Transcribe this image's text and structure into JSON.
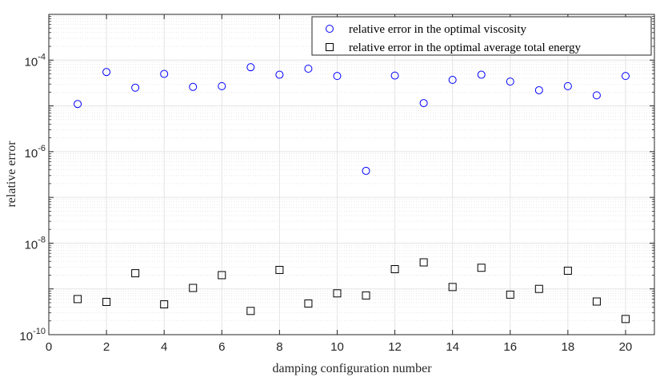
{
  "chart_data": {
    "type": "scatter",
    "xlabel": "damping configuration number",
    "ylabel": "relative error",
    "xlim": [
      0,
      21
    ],
    "ylim": [
      1e-10,
      0.001
    ],
    "yscale": "log",
    "grid": true,
    "minor_grid": true,
    "legend_position": "top-right",
    "x_ticks": [
      0,
      2,
      4,
      6,
      8,
      10,
      12,
      14,
      16,
      18,
      20
    ],
    "x_tick_labels": [
      "0",
      "2",
      "4",
      "6",
      "8",
      "10",
      "12",
      "14",
      "16",
      "18",
      "20"
    ],
    "y_ticks": [
      {
        "value": 1e-10,
        "base": "10",
        "exp": "-10"
      },
      {
        "value": 1e-08,
        "base": "10",
        "exp": "-8"
      },
      {
        "value": 1e-06,
        "base": "10",
        "exp": "-6"
      },
      {
        "value": 0.0001,
        "base": "10",
        "exp": "-4"
      }
    ],
    "x": [
      1,
      2,
      3,
      4,
      5,
      6,
      7,
      8,
      9,
      10,
      11,
      12,
      13,
      14,
      15,
      16,
      17,
      18,
      19,
      20
    ],
    "series": [
      {
        "name": "relative error in the optimal viscosity",
        "marker": "circle",
        "color": "#0000ff",
        "values": [
          1.1e-05,
          5.5e-05,
          2.5e-05,
          5e-05,
          2.6e-05,
          2.7e-05,
          7e-05,
          4.8e-05,
          6.5e-05,
          4.5e-05,
          3.8e-07,
          4.6e-05,
          1.15e-05,
          3.7e-05,
          4.8e-05,
          3.4e-05,
          2.2e-05,
          2.7e-05,
          1.7e-05,
          4.5e-05
        ]
      },
      {
        "name": "relative error in the optimal average total energy",
        "marker": "square",
        "color": "#000000",
        "values": [
          6e-10,
          5.2e-10,
          2.2e-09,
          4.6e-10,
          1.05e-09,
          2e-09,
          3.3e-10,
          2.6e-09,
          4.8e-10,
          8e-10,
          7.2e-10,
          2.7e-09,
          3.8e-09,
          1.1e-09,
          2.9e-09,
          7.5e-10,
          1e-09,
          2.5e-09,
          5.3e-10,
          2.2e-10
        ]
      }
    ]
  }
}
